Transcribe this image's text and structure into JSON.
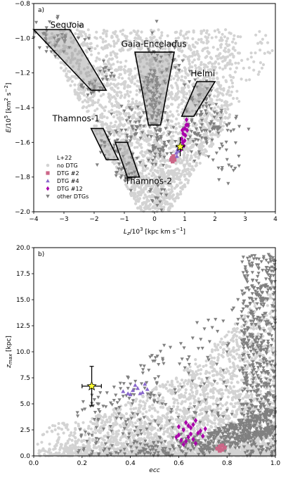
{
  "chart_data": [
    {
      "type": "scatter",
      "panel_label": "a)",
      "xlabel": "L_z/10^3 [kpc km s^-1]",
      "ylabel": "E/10^5 [km^2 s^-2]",
      "xlim": [
        -4,
        4
      ],
      "ylim": [
        -2.0,
        -0.8
      ],
      "xticks": [
        "−4",
        "−3",
        "−2",
        "−1",
        "0",
        "1",
        "2",
        "3",
        "4"
      ],
      "yticks": [
        "−2.0",
        "−1.8",
        "−1.6",
        "−1.4",
        "−1.2",
        "−1.0",
        "−0.8"
      ],
      "legend": {
        "title": "L+22",
        "placement": "lower-left",
        "entries": [
          "no DTG",
          "DTG #2",
          "DTG #4",
          "DTG #12",
          "other DTGs"
        ]
      },
      "series_colors": {
        "no DTG": "#d3d3d3",
        "DTG #2": "#cc6688",
        "DTG #4": "#8866cc",
        "DTG #12": "#aa00aa",
        "other DTGs": "#808080"
      },
      "regions": [
        {
          "label": "Sequoia",
          "polygon": [
            [
              -4,
              -0.95
            ],
            [
              -2.8,
              -0.95
            ],
            [
              -1.6,
              -1.3
            ],
            [
              -2.1,
              -1.3
            ]
          ]
        },
        {
          "label": "Gaia-Enceladus",
          "polygon": [
            [
              -0.65,
              -1.08
            ],
            [
              0.65,
              -1.08
            ],
            [
              0.2,
              -1.5
            ],
            [
              -0.2,
              -1.5
            ]
          ]
        },
        {
          "label": "Helmi",
          "polygon": [
            [
              1.4,
              -1.25
            ],
            [
              2.0,
              -1.25
            ],
            [
              1.3,
              -1.45
            ],
            [
              0.9,
              -1.45
            ]
          ]
        },
        {
          "label": "Thamnos-1",
          "polygon": [
            [
              -2.1,
              -1.52
            ],
            [
              -1.7,
              -1.52
            ],
            [
              -1.2,
              -1.7
            ],
            [
              -1.6,
              -1.7
            ]
          ]
        },
        {
          "label": "Thamnos-2",
          "polygon": [
            [
              -1.3,
              -1.6
            ],
            [
              -0.9,
              -1.6
            ],
            [
              -0.5,
              -1.8
            ],
            [
              -0.9,
              -1.8
            ]
          ]
        }
      ],
      "star": {
        "x": 0.85,
        "y": -1.625,
        "xerr": 0.15,
        "yerr": 0.055
      },
      "dtg2": [
        [
          0.58,
          -1.69
        ],
        [
          0.62,
          -1.68
        ],
        [
          0.66,
          -1.7
        ],
        [
          0.6,
          -1.71
        ],
        [
          0.55,
          -1.7
        ]
      ],
      "dtg4": [
        [
          0.72,
          -1.66
        ],
        [
          0.76,
          -1.64
        ],
        [
          0.74,
          -1.68
        ],
        [
          0.79,
          -1.65
        ]
      ],
      "dtg12": [
        [
          0.9,
          -1.58
        ],
        [
          0.95,
          -1.55
        ],
        [
          1.0,
          -1.52
        ],
        [
          1.05,
          -1.5
        ],
        [
          0.93,
          -1.6
        ],
        [
          1.02,
          -1.56
        ],
        [
          1.08,
          -1.53
        ],
        [
          0.97,
          -1.62
        ],
        [
          1.1,
          -1.5
        ],
        [
          0.88,
          -1.64
        ],
        [
          1.0,
          -1.59
        ],
        [
          1.06,
          -1.47
        ],
        [
          0.92,
          -1.53
        ]
      ]
    },
    {
      "type": "scatter",
      "panel_label": "b)",
      "xlabel": "ecc",
      "ylabel": "z_max [kpc]",
      "xlim": [
        0.0,
        1.0
      ],
      "ylim": [
        0.0,
        20.0
      ],
      "xticks": [
        "0.0",
        "0.2",
        "0.4",
        "0.6",
        "0.8",
        "1.0"
      ],
      "yticks": [
        "0.0",
        "2.5",
        "5.0",
        "7.5",
        "10.0",
        "12.5",
        "15.0",
        "17.5",
        "20.0"
      ],
      "star": {
        "x": 0.24,
        "y": 6.7,
        "xerr": 0.04,
        "yerr": 1.9
      },
      "dtg2": [
        [
          0.77,
          0.9
        ],
        [
          0.78,
          0.6
        ],
        [
          0.76,
          0.7
        ],
        [
          0.78,
          1.0
        ],
        [
          0.77,
          0.5
        ],
        [
          0.79,
          0.8
        ]
      ],
      "dtg4": [
        [
          0.37,
          6.2
        ],
        [
          0.39,
          6.0
        ],
        [
          0.41,
          6.3
        ],
        [
          0.43,
          6.5
        ],
        [
          0.45,
          6.1
        ],
        [
          0.47,
          6.4
        ],
        [
          0.42,
          6.8
        ],
        [
          0.46,
          6.9
        ],
        [
          0.4,
          5.9
        ],
        [
          0.44,
          6.0
        ]
      ],
      "dtg12": [
        [
          0.6,
          2.0
        ],
        [
          0.62,
          2.5
        ],
        [
          0.64,
          1.8
        ],
        [
          0.66,
          3.0
        ],
        [
          0.68,
          2.2
        ],
        [
          0.61,
          1.5
        ],
        [
          0.63,
          3.2
        ],
        [
          0.65,
          2.7
        ],
        [
          0.67,
          1.2
        ],
        [
          0.69,
          2.4
        ],
        [
          0.62,
          1.1
        ],
        [
          0.64,
          2.9
        ],
        [
          0.66,
          1.6
        ],
        [
          0.7,
          1.9
        ],
        [
          0.6,
          2.8
        ],
        [
          0.63,
          1.4
        ],
        [
          0.65,
          2.1
        ],
        [
          0.67,
          3.4
        ],
        [
          0.71,
          2.6
        ],
        [
          0.59,
          1.8
        ]
      ]
    }
  ]
}
